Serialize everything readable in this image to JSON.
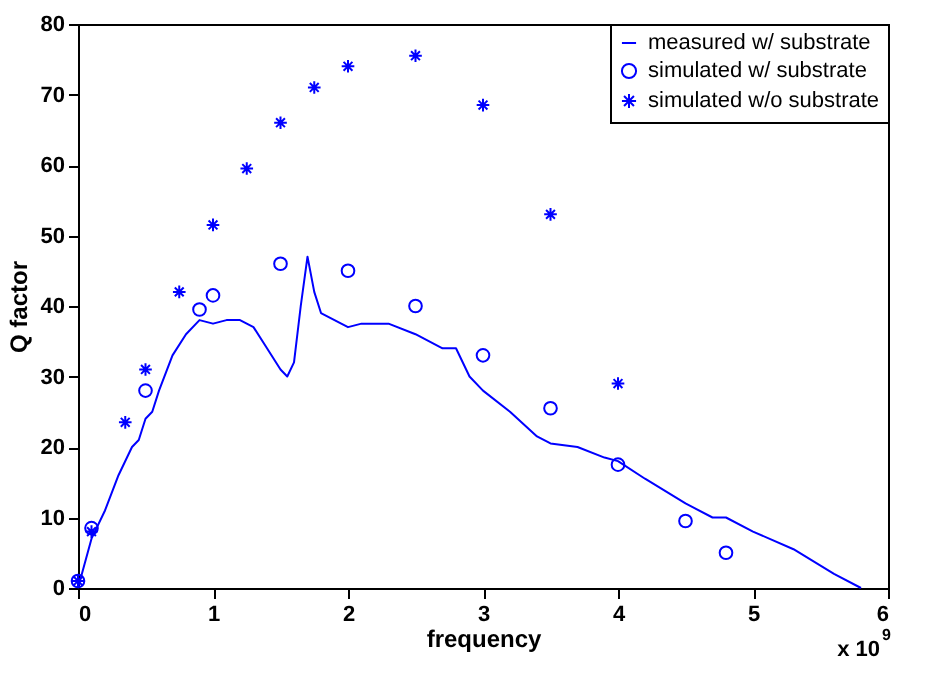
{
  "chart_data": {
    "type": "line",
    "xlabel": "frequency",
    "ylabel": "Q factor",
    "xlim": [
      0,
      6
    ],
    "xticks": [
      0,
      1,
      2,
      3,
      4,
      5,
      6
    ],
    "ylim": [
      0,
      80
    ],
    "yticks": [
      0,
      10,
      20,
      30,
      40,
      50,
      60,
      70,
      80
    ],
    "grid": false,
    "legend": "top right",
    "annotations": [
      "x 10$^{9}$"
    ],
    "series": [
      {
        "name": "measured w/ substrate",
        "type": "line",
        "color": "#0000ff",
        "marker": "none",
        "line_style": "solid",
        "x": [
          0,
          0.1,
          0.2,
          0.3,
          0.4,
          0.45,
          0.5,
          0.55,
          0.6,
          0.7,
          0.8,
          0.9,
          1.0,
          1.1,
          1.2,
          1.3,
          1.4,
          1.5,
          1.55,
          1.6,
          1.65,
          1.7,
          1.75,
          1.8,
          1.9,
          2.0,
          2.1,
          2.3,
          2.5,
          2.7,
          2.8,
          2.9,
          3.0,
          3.2,
          3.4,
          3.5,
          3.7,
          3.9,
          4.0,
          4.2,
          4.5,
          4.7,
          4.8,
          5.0,
          5.3,
          5.6,
          5.8
        ],
        "values": [
          0,
          7,
          11,
          16,
          20,
          21,
          24,
          25,
          28,
          33,
          36,
          38,
          37.5,
          38,
          38,
          37,
          34,
          31,
          30,
          32,
          40,
          47,
          42,
          39,
          38,
          37,
          37.5,
          37.5,
          36,
          34,
          34,
          30,
          28,
          25,
          21.5,
          20.5,
          20,
          18.5,
          18,
          15.5,
          12,
          10,
          10,
          8,
          5.5,
          2,
          0
        ]
      },
      {
        "name": "simulated w/ substrate",
        "type": "scatter",
        "color": "#0000ff",
        "marker": "circle",
        "x": [
          0,
          0.1,
          0.5,
          0.9,
          1.0,
          1.5,
          2,
          2.5,
          3,
          3.5,
          4,
          4.5,
          4.8
        ],
        "values": [
          1,
          8.5,
          28,
          39.5,
          41.5,
          46,
          45,
          40,
          33,
          25.5,
          17.5,
          9.5,
          5
        ]
      },
      {
        "name": "simulated w/o substrate",
        "type": "scatter",
        "color": "#0000ff",
        "marker": "cross",
        "x": [
          0,
          0.1,
          0.35,
          0.5,
          0.75,
          1.0,
          1.25,
          1.5,
          1.75,
          2,
          2.5,
          3,
          3.5,
          4
        ],
        "values": [
          1,
          8,
          23.5,
          31,
          42,
          51.5,
          59.5,
          66,
          71,
          74,
          75.5,
          68.5,
          53,
          29
        ]
      }
    ]
  }
}
